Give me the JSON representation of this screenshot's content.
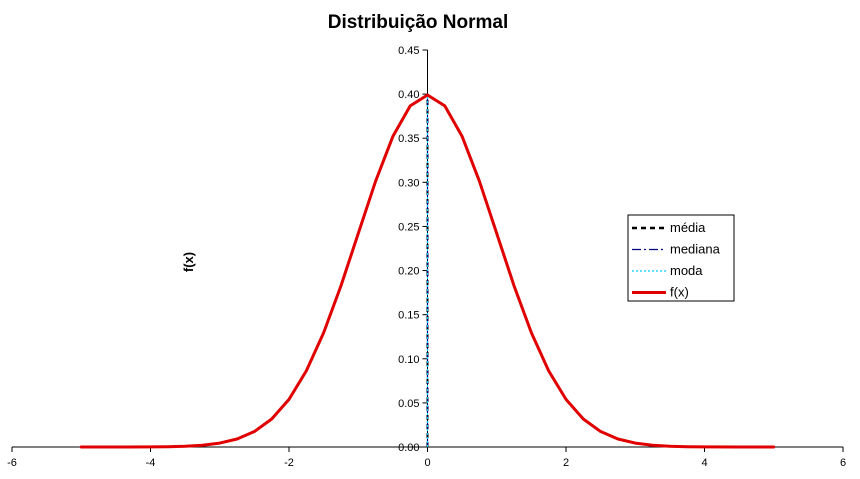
{
  "chart_data": {
    "type": "line",
    "title": "Distribuição Normal",
    "xlabel": "",
    "ylabel": "f(x)",
    "xlim": [
      -6,
      6
    ],
    "ylim": [
      0,
      0.45
    ],
    "x_ticks": [
      -6,
      -4,
      -2,
      0,
      2,
      4,
      6
    ],
    "x_tick_labels": [
      "-6",
      "-4",
      "-2",
      "0",
      "2",
      "4",
      "6"
    ],
    "y_ticks": [
      0,
      0.05,
      0.1,
      0.15,
      0.2,
      0.25,
      0.3,
      0.35,
      0.4,
      0.45
    ],
    "y_tick_labels": [
      "0.00",
      "0.05",
      "0.10",
      "0.15",
      "0.20",
      "0.25",
      "0.30",
      "0.35",
      "0.40",
      "0.45"
    ],
    "grid": false,
    "legend_position": "right",
    "series": [
      {
        "name": "média",
        "kind": "vertical-line",
        "x": 0,
        "y": [
          0,
          0.3989
        ],
        "color": "#000000",
        "dash": "dashed"
      },
      {
        "name": "mediana",
        "kind": "vertical-line",
        "x": 0,
        "y": [
          0,
          0.3989
        ],
        "color": "#000080",
        "dash": "dash-dot"
      },
      {
        "name": "moda",
        "kind": "vertical-line",
        "x": 0,
        "y": [
          0,
          0.3989
        ],
        "color": "#00CCFF",
        "dash": "dotted"
      },
      {
        "name": "f(x)",
        "kind": "curve",
        "color": "#E00000",
        "x": [
          -5,
          -4.5,
          -4,
          -3.75,
          -3.5,
          -3.25,
          -3,
          -2.75,
          -2.5,
          -2.25,
          -2,
          -1.75,
          -1.5,
          -1.25,
          -1,
          -0.75,
          -0.5,
          -0.25,
          0,
          0.25,
          0.5,
          0.75,
          1,
          1.25,
          1.5,
          1.75,
          2,
          2.25,
          2.5,
          2.75,
          3,
          3.25,
          3.5,
          3.75,
          4,
          4.5,
          5
        ],
        "y": [
          1.5e-06,
          1.6e-05,
          0.000134,
          0.000353,
          0.000873,
          0.002029,
          0.004432,
          0.009094,
          0.017528,
          0.03174,
          0.053991,
          0.086277,
          0.129518,
          0.182649,
          0.241971,
          0.301137,
          0.352065,
          0.386668,
          0.398942,
          0.386668,
          0.352065,
          0.301137,
          0.241971,
          0.182649,
          0.129518,
          0.086277,
          0.053991,
          0.03174,
          0.017528,
          0.009094,
          0.004432,
          0.002029,
          0.000873,
          0.000353,
          0.000134,
          1.6e-05,
          1.5e-06
        ]
      }
    ]
  }
}
